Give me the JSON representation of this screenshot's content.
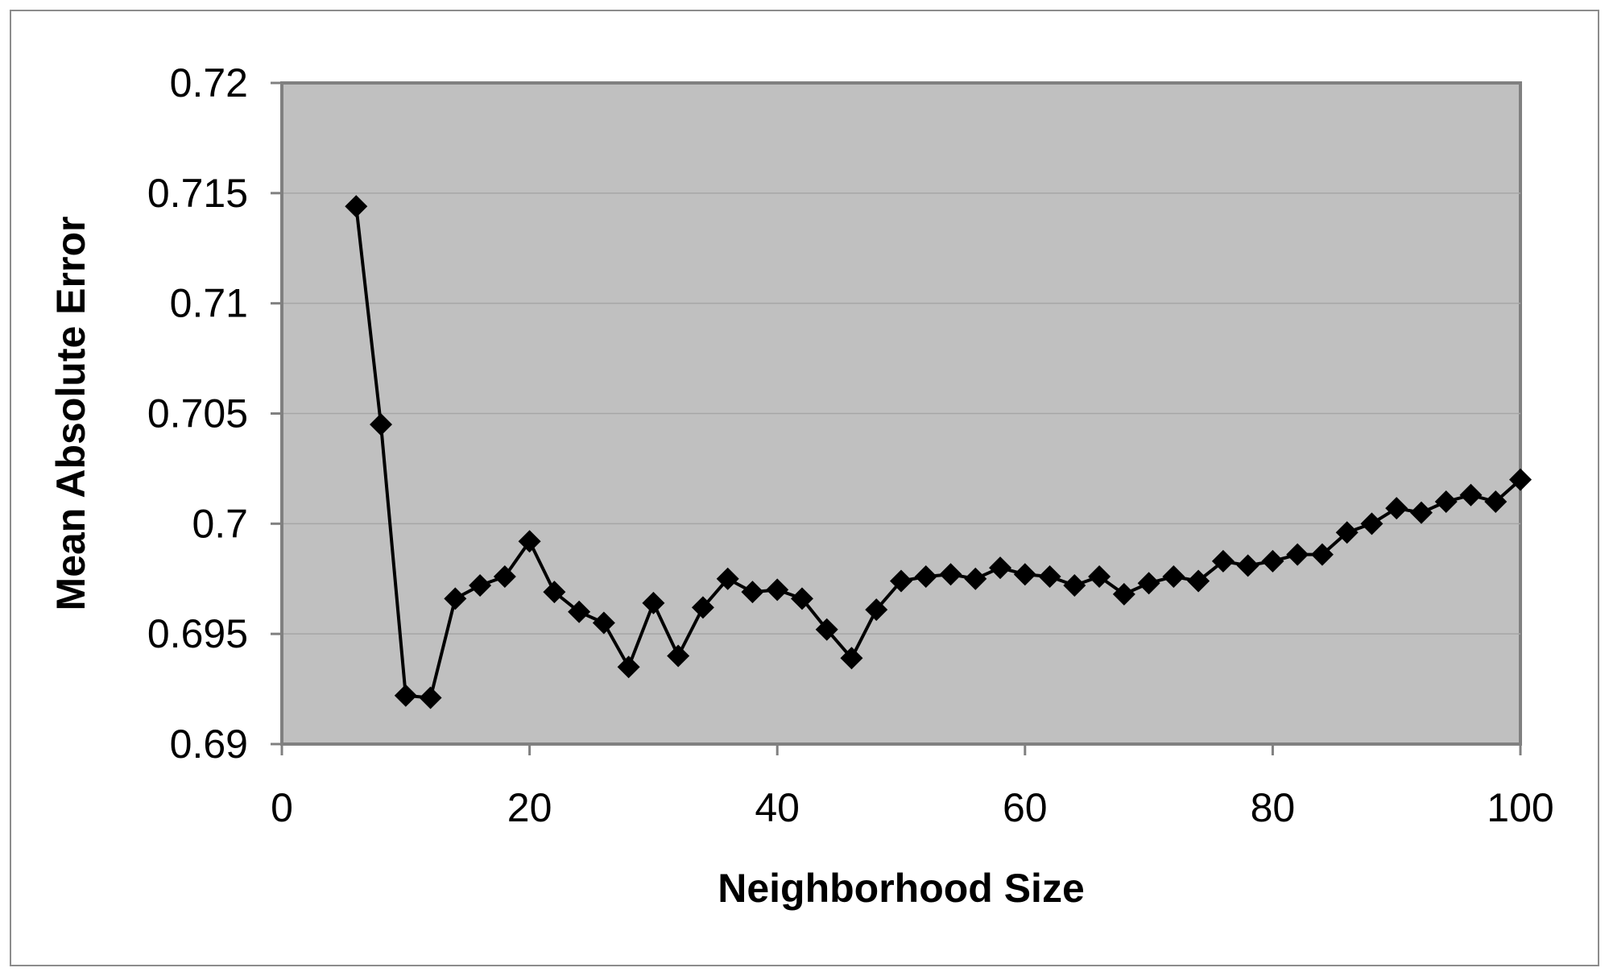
{
  "chart_data": {
    "type": "line",
    "xlabel": "Neighborhood Size",
    "ylabel": "Mean Absolute Error",
    "xlim": [
      0,
      100
    ],
    "ylim": [
      0.69,
      0.72
    ],
    "x_ticks": [
      "0",
      "20",
      "40",
      "60",
      "80",
      "100"
    ],
    "y_ticks": [
      "0.69",
      "0.695",
      "0.7",
      "0.705",
      "0.71",
      "0.715",
      "0.72"
    ],
    "grid": "horizontal",
    "legend": "none",
    "marker": "diamond",
    "colors": {
      "plot_background": "#c0c0c0",
      "gridline": "#a6a6a6",
      "series": "#000000",
      "axis": "#808080"
    },
    "series": [
      {
        "x": [
          6,
          8,
          10,
          12,
          14,
          16,
          18,
          20,
          22,
          24,
          26,
          28,
          30,
          32,
          34,
          36,
          38,
          40,
          42,
          44,
          46,
          48,
          50,
          52,
          54,
          56,
          58,
          60,
          62,
          64,
          66,
          68,
          70,
          72,
          74,
          76,
          78,
          80,
          82,
          84,
          86,
          88,
          90,
          92,
          94,
          96,
          98,
          100
        ],
        "y": [
          0.7144,
          0.7045,
          0.6922,
          0.6921,
          0.6966,
          0.6972,
          0.6976,
          0.6992,
          0.6969,
          0.696,
          0.6955,
          0.6935,
          0.6964,
          0.694,
          0.6962,
          0.6975,
          0.6969,
          0.697,
          0.6966,
          0.6952,
          0.6939,
          0.6961,
          0.6974,
          0.6976,
          0.6977,
          0.6975,
          0.698,
          0.6977,
          0.6976,
          0.6972,
          0.6976,
          0.6968,
          0.6973,
          0.6976,
          0.6974,
          0.6983,
          0.6981,
          0.6983,
          0.6986,
          0.6986,
          0.6996,
          0.7,
          0.7007,
          0.7005,
          0.701,
          0.7013,
          0.701,
          0.702
        ]
      }
    ]
  }
}
